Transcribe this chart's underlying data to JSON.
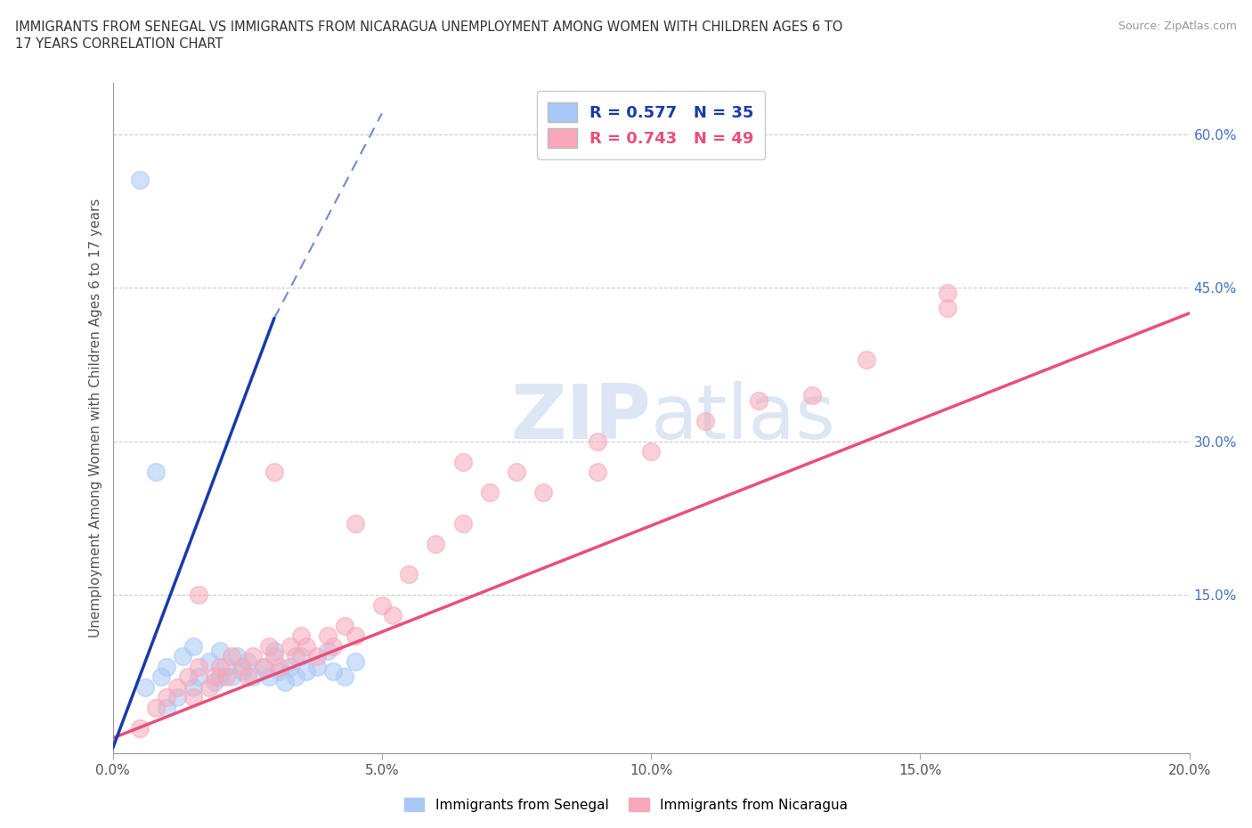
{
  "title_line1": "IMMIGRANTS FROM SENEGAL VS IMMIGRANTS FROM NICARAGUA UNEMPLOYMENT AMONG WOMEN WITH CHILDREN AGES 6 TO",
  "title_line2": "17 YEARS CORRELATION CHART",
  "source": "Source: ZipAtlas.com",
  "ylabel": "Unemployment Among Women with Children Ages 6 to 17 years",
  "legend_label_1": "Immigrants from Senegal",
  "legend_label_2": "Immigrants from Nicaragua",
  "R1": 0.577,
  "N1": 35,
  "R2": 0.743,
  "N2": 49,
  "xlim": [
    0.0,
    0.2
  ],
  "ylim": [
    -0.005,
    0.65
  ],
  "xticks": [
    0.0,
    0.05,
    0.1,
    0.15,
    0.2
  ],
  "xtick_labels": [
    "0.0%",
    "5.0%",
    "10.0%",
    "15.0%",
    "20.0%"
  ],
  "yticks_right": [
    0.15,
    0.3,
    0.45,
    0.6
  ],
  "ytick_labels_right": [
    "15.0%",
    "30.0%",
    "45.0%",
    "60.0%"
  ],
  "color_senegal": "#a8c8f8",
  "color_nicaragua": "#f8a8b8",
  "color_line_senegal": "#1a3aaa",
  "color_line_nicaragua": "#e8507a",
  "watermark_color": "#e8eef8",
  "background_color": "#ffffff",
  "senegal_x": [
    0.005,
    0.008,
    0.01,
    0.01,
    0.012,
    0.013,
    0.015,
    0.015,
    0.016,
    0.018,
    0.019,
    0.02,
    0.02,
    0.021,
    0.022,
    0.023,
    0.024,
    0.025,
    0.026,
    0.028,
    0.029,
    0.03,
    0.031,
    0.032,
    0.033,
    0.034,
    0.035,
    0.036,
    0.038,
    0.04,
    0.041,
    0.043,
    0.045,
    0.006,
    0.009
  ],
  "senegal_y": [
    0.555,
    0.27,
    0.04,
    0.08,
    0.05,
    0.09,
    0.06,
    0.1,
    0.07,
    0.085,
    0.065,
    0.07,
    0.095,
    0.08,
    0.07,
    0.09,
    0.075,
    0.085,
    0.07,
    0.08,
    0.07,
    0.095,
    0.075,
    0.065,
    0.08,
    0.07,
    0.09,
    0.075,
    0.08,
    0.095,
    0.075,
    0.07,
    0.085,
    0.06,
    0.07
  ],
  "nicaragua_x": [
    0.005,
    0.008,
    0.01,
    0.012,
    0.014,
    0.015,
    0.016,
    0.018,
    0.019,
    0.02,
    0.021,
    0.022,
    0.024,
    0.025,
    0.026,
    0.028,
    0.029,
    0.03,
    0.031,
    0.033,
    0.034,
    0.035,
    0.036,
    0.038,
    0.04,
    0.041,
    0.043,
    0.045,
    0.05,
    0.052,
    0.055,
    0.06,
    0.065,
    0.07,
    0.075,
    0.08,
    0.09,
    0.1,
    0.11,
    0.12,
    0.13,
    0.14,
    0.155,
    0.016,
    0.03,
    0.045,
    0.065,
    0.09,
    0.155
  ],
  "nicaragua_y": [
    0.02,
    0.04,
    0.05,
    0.06,
    0.07,
    0.05,
    0.08,
    0.06,
    0.07,
    0.08,
    0.07,
    0.09,
    0.08,
    0.07,
    0.09,
    0.08,
    0.1,
    0.09,
    0.08,
    0.1,
    0.09,
    0.11,
    0.1,
    0.09,
    0.11,
    0.1,
    0.12,
    0.11,
    0.14,
    0.13,
    0.17,
    0.2,
    0.22,
    0.25,
    0.27,
    0.25,
    0.27,
    0.29,
    0.32,
    0.34,
    0.345,
    0.38,
    0.43,
    0.15,
    0.27,
    0.22,
    0.28,
    0.3,
    0.445
  ],
  "line_senegal_x0": 0.0,
  "line_senegal_y0": 0.0,
  "line_senegal_x1": 0.03,
  "line_senegal_y1": 0.42,
  "line_senegal_dash_x0": 0.03,
  "line_senegal_dash_y0": 0.42,
  "line_senegal_dash_x1": 0.05,
  "line_senegal_dash_y1": 0.62,
  "line_nicaragua_x0": 0.0,
  "line_nicaragua_y0": 0.01,
  "line_nicaragua_x1": 0.2,
  "line_nicaragua_y1": 0.425
}
